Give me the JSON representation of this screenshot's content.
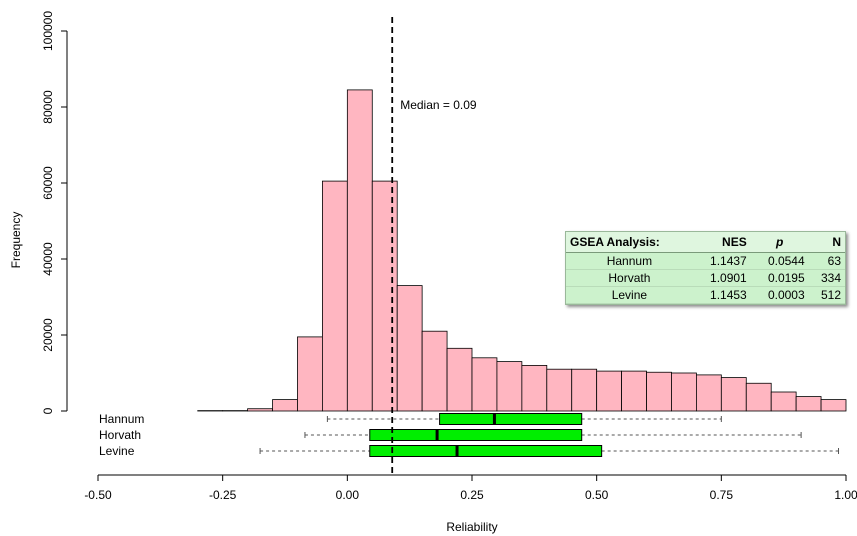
{
  "chart_data": {
    "type": "bar",
    "subtype": "histogram",
    "xlabel": "Reliability",
    "ylabel": "Frequency",
    "xlim": [
      -0.5,
      1.0
    ],
    "ylim": [
      0,
      100000
    ],
    "x_ticks": [
      "-0.50",
      "-0.25",
      "0.00",
      "0.25",
      "0.50",
      "0.75",
      "1.00"
    ],
    "y_ticks": [
      "0",
      "20000",
      "40000",
      "60000",
      "80000",
      "100000"
    ],
    "bin_width": 0.05,
    "bin_starts": [
      -0.3,
      -0.25,
      -0.2,
      -0.15,
      -0.1,
      -0.05,
      0.0,
      0.05,
      0.1,
      0.15,
      0.2,
      0.25,
      0.3,
      0.35,
      0.4,
      0.45,
      0.5,
      0.55,
      0.6,
      0.65,
      0.7,
      0.75,
      0.8,
      0.85,
      0.9,
      0.95
    ],
    "frequencies": [
      100,
      100,
      600,
      3000,
      19500,
      60500,
      84500,
      60500,
      33000,
      21000,
      16500,
      14000,
      13000,
      12000,
      11000,
      11000,
      10500,
      10500,
      10200,
      10000,
      9500,
      8800,
      7300,
      5000,
      3800,
      3000
    ],
    "bar_color": "#ffb6c1",
    "median": {
      "value": 0.09,
      "label": "Median = 0.09"
    },
    "boxplots": [
      {
        "name": "Hannum",
        "whisker_low": -0.04,
        "q1": 0.185,
        "median": 0.295,
        "q3": 0.47,
        "whisker_high": 0.75
      },
      {
        "name": "Horvath",
        "whisker_low": -0.085,
        "q1": 0.045,
        "median": 0.18,
        "q3": 0.47,
        "whisker_high": 0.91
      },
      {
        "name": "Levine",
        "whisker_low": -0.175,
        "q1": 0.045,
        "median": 0.22,
        "q3": 0.51,
        "whisker_high": 0.985
      }
    ],
    "box_color": "#00ee00"
  },
  "gsea_table": {
    "title": "GSEA Analysis:",
    "columns": [
      "NES",
      "p",
      "N"
    ],
    "rows": [
      {
        "name": "Hannum",
        "nes": "1.1437",
        "p": "0.0544",
        "n": "63"
      },
      {
        "name": "Horvath",
        "nes": "1.0901",
        "p": "0.0195",
        "n": "334"
      },
      {
        "name": "Levine",
        "nes": "1.1453",
        "p": "0.0003",
        "n": "512"
      }
    ]
  }
}
